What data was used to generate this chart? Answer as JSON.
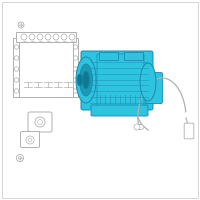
{
  "bg_color": "#ffffff",
  "border_color": "#d0d0d0",
  "outline_color": "#b0b0b0",
  "module_edge": "#b0b0b0",
  "compressor_fill": "#2ec4e0",
  "compressor_edge": "#1a8aad",
  "compressor_dark": "#1a9ab5",
  "compressor_darker": "#0d7a94",
  "fig_width": 2.0,
  "fig_height": 2.0,
  "dpi": 100
}
